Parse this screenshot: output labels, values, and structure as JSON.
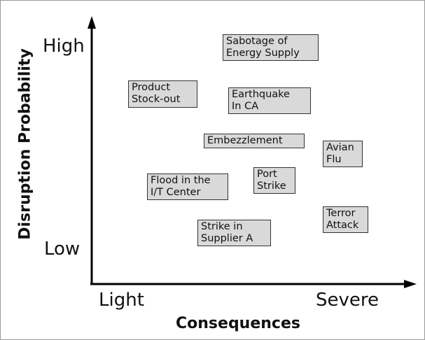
{
  "axes": {
    "y_title": "Disruption Probability",
    "y_high": "High",
    "y_low": "Low",
    "x_title": "Consequences",
    "x_low": "Light",
    "x_high": "Severe"
  },
  "nodes": [
    {
      "lines": [
        "Sabotage of",
        "Energy Supply"
      ]
    },
    {
      "lines": [
        "Product",
        "Stock-out"
      ]
    },
    {
      "lines": [
        "Earthquake",
        "In CA"
      ]
    },
    {
      "lines": [
        "Embezzlement"
      ]
    },
    {
      "lines": [
        "Avian",
        "Flu"
      ]
    },
    {
      "lines": [
        "Flood in the",
        "I/T Center"
      ]
    },
    {
      "lines": [
        "Port",
        "Strike"
      ]
    },
    {
      "lines": [
        "Terror",
        "Attack"
      ]
    },
    {
      "lines": [
        "Strike in",
        "Supplier A"
      ]
    }
  ]
}
